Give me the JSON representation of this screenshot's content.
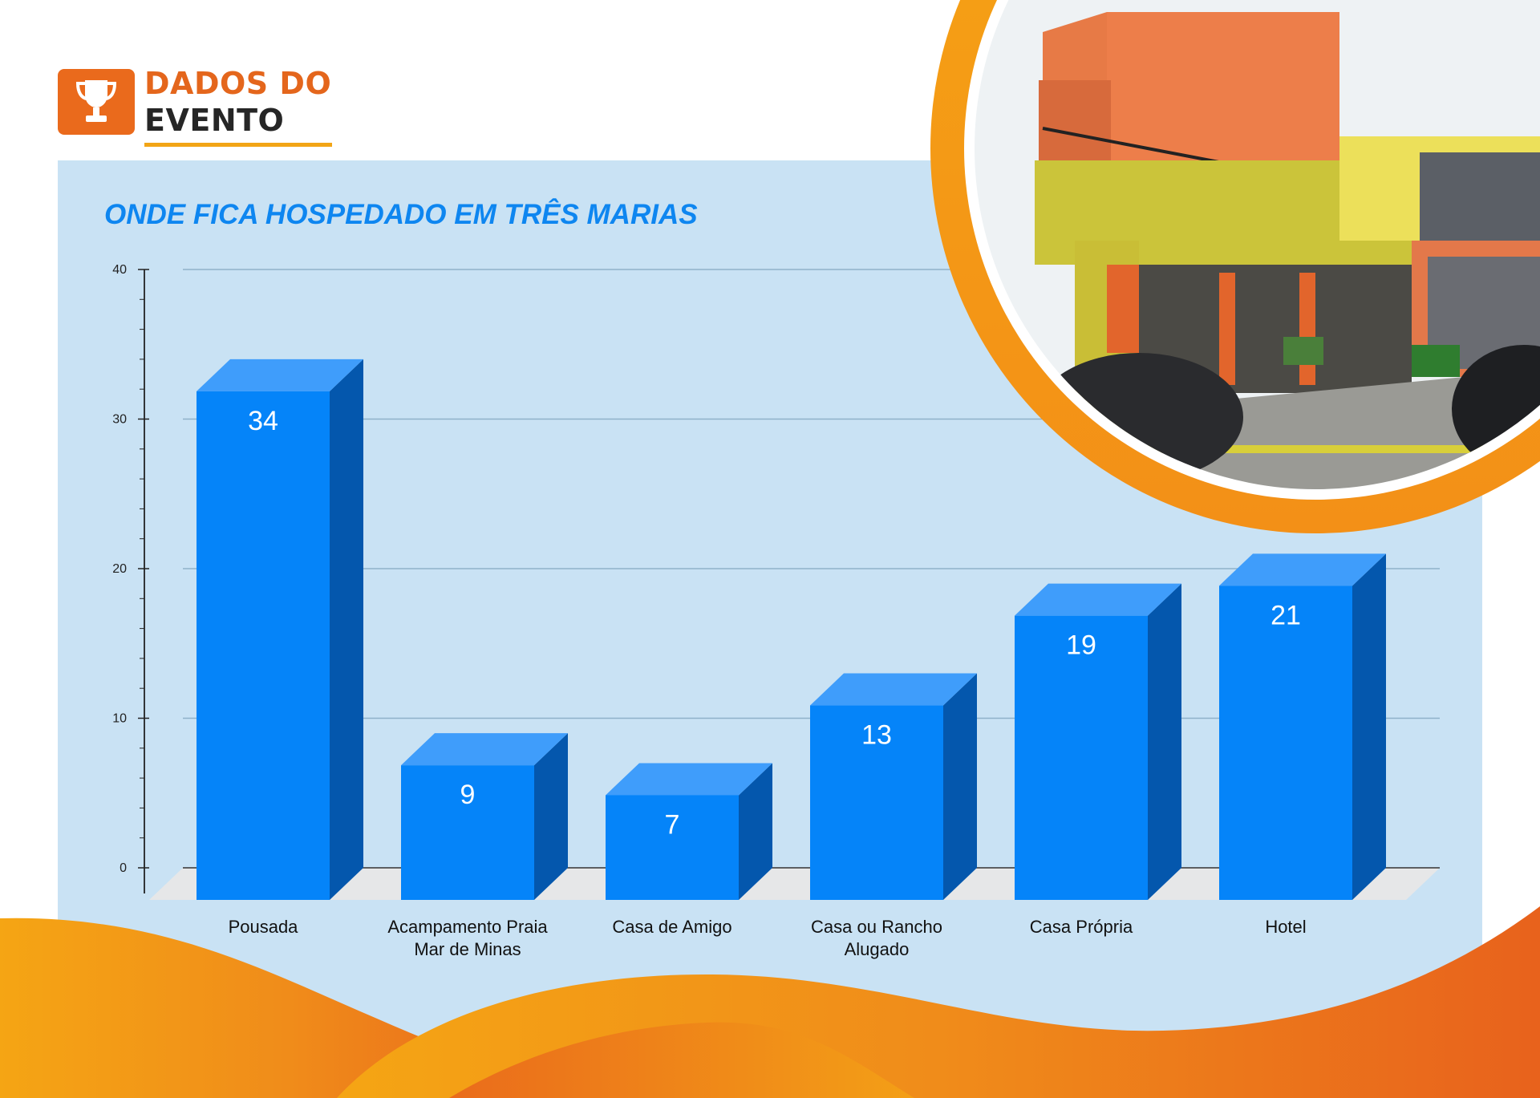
{
  "header": {
    "line1": "DADOS DO",
    "line2": "EVENTO",
    "icon": "trophy-icon"
  },
  "colors": {
    "accent_orange": "#ea6a1c",
    "accent_yellow": "#f2a516",
    "bar_front": "#0584f9",
    "bar_top": "#3f9dfb",
    "bar_side": "#0457ad",
    "panel": "#c9e2f4"
  },
  "photo": {
    "description_icon": "hotel-photo"
  },
  "chart_data": {
    "type": "bar",
    "title": "ONDE FICA HOSPEDADO EM TRÊS MARIAS",
    "categories": [
      "Pousada",
      "Acampamento Praia\nMar de Minas",
      "Casa de Amigo",
      "Casa ou Rancho\nAlugado",
      "Casa Própria",
      "Hotel"
    ],
    "values": [
      34,
      9,
      7,
      13,
      19,
      21
    ],
    "ylim": [
      0,
      40
    ],
    "yticks": [
      0,
      10,
      20,
      30,
      40
    ],
    "grid": true,
    "style": "3d-columns"
  }
}
